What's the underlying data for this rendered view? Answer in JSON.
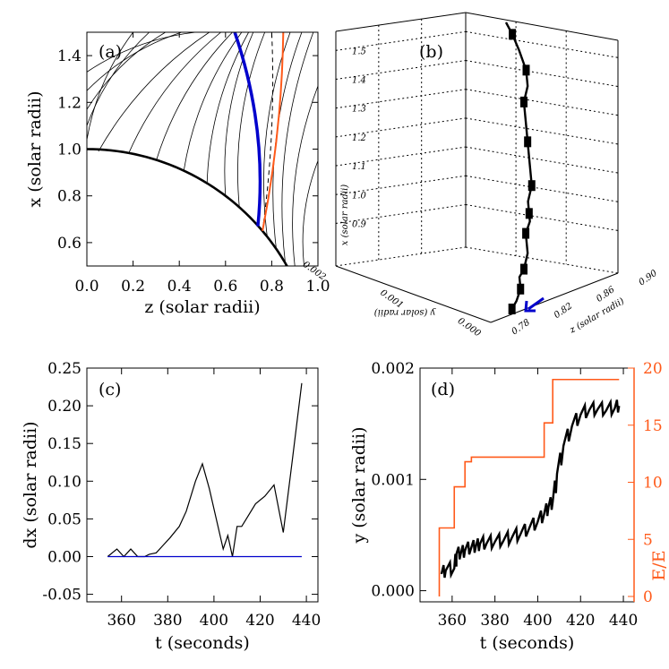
{
  "colors": {
    "blue": "#0000cc",
    "orange": "#ff5a1a",
    "black": "#000000"
  },
  "chart_data": [
    {
      "panel": "a",
      "type": "line",
      "panel_label": "(a)",
      "xlabel": "z (solar radii)",
      "ylabel": "x (solar radii)",
      "xlim": [
        0.0,
        1.0
      ],
      "ylim": [
        0.5,
        1.5
      ],
      "xticks": [
        "0.0",
        "0.2",
        "0.4",
        "0.6",
        "0.8",
        "1.0"
      ],
      "yticks": [
        "0.6",
        "0.8",
        "1.0",
        "1.2",
        "1.4"
      ],
      "field_line_endpoints": [
        {
          "from": [
            0.0,
            1.0
          ],
          "to": [
            0.0,
            1.0
          ]
        },
        {
          "from": [
            0.0,
            1.04
          ],
          "to": [
            0.2,
            1.5
          ]
        },
        {
          "from": [
            0.0,
            1.1
          ],
          "to": [
            0.27,
            1.5
          ]
        },
        {
          "from": [
            0.0,
            1.17
          ],
          "to": [
            0.34,
            1.5
          ]
        },
        {
          "from": [
            0.0,
            1.25
          ],
          "to": [
            0.41,
            1.5
          ]
        },
        {
          "from": [
            0.0,
            1.33
          ],
          "to": [
            0.47,
            1.5
          ]
        },
        {
          "from": [
            0.05,
            0.99
          ],
          "to": [
            0.53,
            1.5
          ]
        },
        {
          "from": [
            0.18,
            0.98
          ],
          "to": [
            0.58,
            1.5
          ]
        },
        {
          "from": [
            0.3,
            0.95
          ],
          "to": [
            0.63,
            1.5
          ]
        },
        {
          "from": [
            0.42,
            0.91
          ],
          "to": [
            0.67,
            1.5
          ]
        },
        {
          "from": [
            0.52,
            0.85
          ],
          "to": [
            0.7,
            1.5
          ]
        },
        {
          "from": [
            0.6,
            0.8
          ],
          "to": [
            0.72,
            1.5
          ]
        },
        {
          "from": [
            0.66,
            0.75
          ],
          "to": [
            0.77,
            1.5
          ]
        },
        {
          "from": [
            0.78,
            0.63
          ],
          "to": [
            0.88,
            1.5
          ]
        },
        {
          "from": [
            0.82,
            0.57
          ],
          "to": [
            0.93,
            1.5
          ]
        },
        {
          "from": [
            0.86,
            0.5
          ],
          "to": [
            0.98,
            1.5
          ]
        },
        {
          "from": [
            0.9,
            0.5
          ],
          "to": [
            1.0,
            1.27
          ]
        },
        {
          "from": [
            0.94,
            0.5
          ],
          "to": [
            1.0,
            0.95
          ]
        }
      ],
      "highlighted_lines": {
        "blue": {
          "from": [
            0.74,
            0.67
          ],
          "to": [
            0.64,
            1.5
          ]
        },
        "dashed": {
          "from": [
            0.76,
            0.65
          ],
          "to": [
            0.8,
            1.5
          ]
        },
        "orange": {
          "from": [
            0.76,
            0.65
          ],
          "to": [
            0.85,
            1.5
          ]
        }
      }
    },
    {
      "panel": "b",
      "type": "scatter",
      "panel_label": "(b)",
      "xlabel": "z (solar radii)",
      "ylabel": "y (solar radii)",
      "zlabel": "x (solar radii)",
      "z_ticks": [
        "0.78",
        "0.82",
        "0.86",
        "0.90"
      ],
      "y_ticks": [
        "0.000",
        "0.001",
        "0.002"
      ],
      "x_ticks": [
        "0.9",
        "1.0",
        "1.1",
        "1.2",
        "1.3",
        "1.4",
        "1.5"
      ],
      "zero_tick": "0.000",
      "track_points": [
        [
          0.8,
          0.0,
          0.78
        ],
        [
          0.81,
          0.0,
          0.8
        ],
        [
          0.82,
          0.0,
          0.83
        ],
        [
          0.82,
          0.0,
          0.86
        ],
        [
          0.83,
          0.0,
          0.88
        ],
        [
          0.84,
          0.0,
          0.92
        ],
        [
          0.84,
          0.0,
          0.97
        ],
        [
          0.85,
          0.0,
          1.0
        ],
        [
          0.85,
          0.0,
          1.02
        ],
        [
          0.85,
          0.0,
          1.05
        ],
        [
          0.86,
          0.0,
          1.09
        ],
        [
          0.86,
          0.0,
          1.15
        ],
        [
          0.86,
          0.0,
          1.2
        ],
        [
          0.86,
          0.0,
          1.26
        ],
        [
          0.86,
          0.0,
          1.3
        ],
        [
          0.87,
          0.0,
          1.34
        ],
        [
          0.87,
          0.0,
          1.38
        ],
        [
          0.86,
          0.0,
          1.43
        ],
        [
          0.85,
          0.0,
          1.47
        ],
        [
          0.84,
          0.0,
          1.5
        ]
      ]
    },
    {
      "panel": "c",
      "type": "line",
      "panel_label": "(c)",
      "xlabel": "t (seconds)",
      "ylabel": "dx (solar radii)",
      "xlim": [
        345,
        445
      ],
      "ylim": [
        -0.06,
        0.25
      ],
      "xticks": [
        "360",
        "380",
        "400",
        "420",
        "440"
      ],
      "yticks": [
        "-0.05",
        "0.00",
        "0.05",
        "0.10",
        "0.15",
        "0.20",
        "0.25"
      ],
      "series": [
        {
          "color": "black",
          "x": [
            354,
            358,
            361,
            364,
            367,
            370,
            372,
            375,
            378,
            381,
            385,
            388,
            392,
            395,
            398,
            401,
            404,
            406,
            408,
            410,
            412,
            414,
            418,
            422,
            426,
            430,
            434,
            438
          ],
          "y": [
            0.0,
            0.01,
            0.0,
            0.01,
            0.0,
            0.0,
            0.003,
            0.005,
            0.015,
            0.025,
            0.04,
            0.06,
            0.1,
            0.123,
            0.09,
            0.05,
            0.01,
            0.028,
            0.0,
            0.04,
            0.04,
            0.05,
            0.07,
            0.08,
            0.095,
            0.032,
            0.13,
            0.23
          ]
        },
        {
          "color": "blue",
          "x": [
            354,
            438
          ],
          "y": [
            0.0,
            0.0
          ]
        }
      ]
    },
    {
      "panel": "d",
      "type": "line",
      "panel_label": "(d)",
      "xlabel": "t (seconds)",
      "ylabel": "y (solar radii)",
      "y2label": "E/E",
      "xlim": [
        345,
        445
      ],
      "ylim": [
        -0.0001,
        0.002
      ],
      "y2lim": [
        0,
        20
      ],
      "xticks": [
        "360",
        "380",
        "400",
        "420",
        "440"
      ],
      "yticks": [
        "0.000",
        "0.001",
        "0.002"
      ],
      "y2ticks": [
        "0",
        "5",
        "10",
        "15",
        "20"
      ],
      "series": [
        {
          "color": "black",
          "x": [
            355,
            357,
            361,
            362,
            364,
            366,
            369,
            371,
            373,
            376,
            380,
            384,
            388,
            392,
            396,
            400,
            403,
            405,
            407,
            409,
            412,
            416,
            420,
            424,
            428,
            432,
            436,
            438
          ],
          "y": [
            0.00015,
            0.00018,
            0.0002,
            0.00033,
            0.00033,
            0.00036,
            0.00039,
            0.00039,
            0.00042,
            0.00042,
            0.00044,
            0.00045,
            0.00048,
            0.00051,
            0.00056,
            0.00062,
            0.00069,
            0.00075,
            0.0008,
            0.00105,
            0.0013,
            0.00148,
            0.00158,
            0.00162,
            0.00163,
            0.00162,
            0.00164,
            0.00166
          ]
        },
        {
          "color": "orange",
          "axis": "right",
          "x": [
            354,
            354,
            361,
            361,
            366,
            366,
            369,
            369,
            403,
            403,
            407,
            407,
            438
          ],
          "y": [
            0,
            6,
            6,
            9.6,
            9.6,
            11.8,
            11.8,
            12.2,
            12.2,
            15.2,
            15.2,
            19,
            19
          ]
        }
      ]
    }
  ]
}
